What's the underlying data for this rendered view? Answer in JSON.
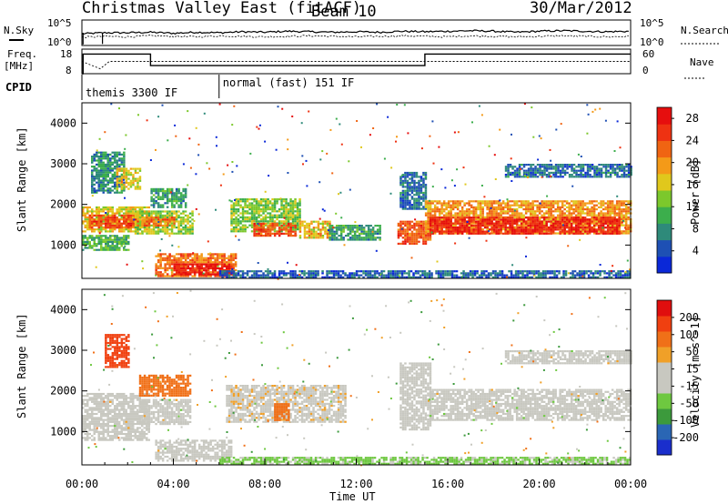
{
  "header": {
    "title": "Christmas Valley East (fitACF)",
    "beam": "Beam 10",
    "date": "30/Mar/2012"
  },
  "colors": {
    "power_scale": [
      "#0a28d8",
      "#1e50b4",
      "#2e8a7a",
      "#3cae4c",
      "#7cc82c",
      "#e0c81c",
      "#f49a18",
      "#f06412",
      "#ee3212",
      "#e60e0e"
    ],
    "velocity_scale": [
      "#1a2ecc",
      "#2a66b4",
      "#3c9a3c",
      "#6ec840",
      "#c8c8c0",
      "#c8c8c0",
      "#f0a028",
      "#f07018",
      "#f04010",
      "#e00e0e"
    ],
    "ground_scatter": "#c8c8c0"
  },
  "chart_data": [
    {
      "type": "line",
      "name": "sky-noise-panel",
      "left_label": "N.Sky",
      "right_label": "N.Search",
      "left_ticks": [
        "10^5",
        "10^0"
      ],
      "right_ticks": [
        "10^5",
        "10^0"
      ],
      "x": [
        0,
        1,
        2,
        3,
        4,
        5,
        6,
        7,
        8,
        9,
        10,
        11,
        12,
        13,
        14,
        15,
        16,
        17,
        18,
        19,
        20,
        21,
        22,
        23,
        24
      ],
      "series": [
        {
          "values": [
            2.3,
            2.5,
            2.5,
            2.6,
            2.4,
            2.6,
            2.5,
            2.7,
            2.6,
            2.8,
            2.7,
            2.6,
            2.7,
            2.6,
            2.8,
            2.7,
            2.8,
            2.9,
            2.8,
            2.6,
            2.8,
            2.9,
            2.8,
            2.7,
            2.8
          ]
        },
        {
          "values": [
            1.6,
            1.8,
            1.7,
            1.9,
            1.8,
            1.7,
            1.9,
            1.8,
            1.7,
            1.8,
            1.9,
            1.8,
            1.7,
            1.8,
            1.9,
            1.8,
            1.7,
            1.9,
            1.8,
            1.7,
            1.8,
            1.9,
            1.8,
            1.7,
            1.8
          ]
        }
      ],
      "ylim": [
        0,
        5
      ]
    },
    {
      "type": "line",
      "name": "frequency-panel",
      "left_label": "Freq.",
      "left_unit": "[MHz]",
      "right_label": "Nave",
      "left_ticks": [
        "18",
        "8"
      ],
      "right_ticks": [
        "60",
        "0"
      ],
      "cpid_label": "CPID",
      "modes": [
        {
          "start_hour": 0,
          "label": "themis 3300 IF"
        },
        {
          "start_hour": 6,
          "label": "normal (fast) 151 IF"
        }
      ],
      "frequency_x": [
        0,
        0.05,
        0.05,
        3.0,
        3.0,
        15.0,
        15.0,
        24
      ],
      "frequency_y": [
        8,
        8,
        16,
        16,
        11.3,
        11.3,
        16,
        16
      ],
      "nave_x": [
        0,
        0.8,
        1.2,
        3.0,
        15.0,
        24
      ],
      "nave_y": [
        30,
        12,
        30,
        30,
        30,
        30
      ],
      "ylim": [
        8,
        18
      ]
    },
    {
      "type": "heatmap",
      "name": "power-panel",
      "ylabel": "Slant Range [km]",
      "yticks": [
        1000,
        2000,
        3000,
        4000
      ],
      "ylim": [
        180,
        4500
      ],
      "xlim": [
        0,
        24
      ],
      "colorbar_label": "Power [dB]",
      "colorbar_ticks": [
        28,
        24,
        20,
        16,
        12,
        8,
        4
      ],
      "colorbar_range": [
        0,
        30
      ],
      "regions": [
        {
          "t0": 0.0,
          "t1": 2.9,
          "r0": 1350,
          "r1": 1950,
          "level": 17
        },
        {
          "t0": 0.3,
          "t1": 2.5,
          "r0": 1450,
          "r1": 1750,
          "level": 24
        },
        {
          "t0": 0.0,
          "t1": 2.0,
          "r0": 900,
          "r1": 1250,
          "level": 11
        },
        {
          "t0": 0.4,
          "t1": 1.8,
          "r0": 2300,
          "r1": 3300,
          "level": 8
        },
        {
          "t0": 1.5,
          "t1": 2.5,
          "r0": 2400,
          "r1": 2900,
          "level": 16
        },
        {
          "t0": 2.3,
          "t1": 4.8,
          "r0": 1300,
          "r1": 1850,
          "level": 14
        },
        {
          "t0": 2.6,
          "t1": 4.0,
          "r0": 1500,
          "r1": 1700,
          "level": 22
        },
        {
          "t0": 3.0,
          "t1": 4.5,
          "r0": 1950,
          "r1": 2400,
          "level": 9
        },
        {
          "t0": 3.2,
          "t1": 6.7,
          "r0": 250,
          "r1": 800,
          "level": 22
        },
        {
          "t0": 4.0,
          "t1": 6.5,
          "r0": 300,
          "r1": 550,
          "level": 28
        },
        {
          "t0": 6.5,
          "t1": 9.5,
          "r0": 1350,
          "r1": 2150,
          "level": 13
        },
        {
          "t0": 7.5,
          "t1": 9.3,
          "r0": 1250,
          "r1": 1550,
          "level": 24
        },
        {
          "t0": 9.5,
          "t1": 10.8,
          "r0": 1200,
          "r1": 1600,
          "level": 18
        },
        {
          "t0": 10.8,
          "t1": 13.0,
          "r0": 1150,
          "r1": 1500,
          "level": 9
        },
        {
          "t0": 13.8,
          "t1": 15.2,
          "r0": 1050,
          "r1": 1600,
          "level": 24
        },
        {
          "t0": 13.9,
          "t1": 15.0,
          "r0": 1900,
          "r1": 2800,
          "level": 6
        },
        {
          "t0": 15.0,
          "t1": 24.0,
          "r0": 1300,
          "r1": 2100,
          "level": 20
        },
        {
          "t0": 15.2,
          "t1": 23.5,
          "r0": 1300,
          "r1": 1700,
          "level": 27
        },
        {
          "t0": 18.5,
          "t1": 24.0,
          "r0": 2700,
          "r1": 3000,
          "level": 6
        },
        {
          "t0": 6.0,
          "t1": 24.0,
          "r0": 200,
          "r1": 380,
          "level": 5
        }
      ]
    },
    {
      "type": "heatmap",
      "name": "velocity-panel",
      "ylabel": "Slant Range [km]",
      "xlabel": "Time UT",
      "yticks": [
        1000,
        2000,
        3000,
        4000
      ],
      "ylim": [
        180,
        4500
      ],
      "xlim": [
        0,
        24
      ],
      "xticks": [
        "00:00",
        "04:00",
        "08:00",
        "12:00",
        "16:00",
        "20:00",
        "00:00"
      ],
      "colorbar_label": "Velocity [m s^-1]",
      "colorbar_ticks": [
        200,
        100,
        50,
        15,
        -15,
        -50,
        -100,
        -200
      ],
      "colorbar_range": [
        -250,
        250
      ],
      "regions": [
        {
          "t0": 0.0,
          "t1": 2.9,
          "r0": 800,
          "r1": 1950,
          "level": 0
        },
        {
          "t0": 1.0,
          "t1": 2.0,
          "r0": 2600,
          "r1": 3400,
          "level": 180
        },
        {
          "t0": 2.5,
          "t1": 4.7,
          "r0": 1900,
          "r1": 2400,
          "level": 120
        },
        {
          "t0": 2.5,
          "t1": 4.7,
          "r0": 1200,
          "r1": 1800,
          "level": 0
        },
        {
          "t0": 3.2,
          "t1": 6.5,
          "r0": 300,
          "r1": 800,
          "level": 0
        },
        {
          "t0": 6.3,
          "t1": 11.5,
          "r0": 1250,
          "r1": 2150,
          "level": 35
        },
        {
          "t0": 8.4,
          "t1": 9.0,
          "r0": 1300,
          "r1": 1700,
          "level": 120
        },
        {
          "t0": 13.9,
          "t1": 15.2,
          "r0": 1050,
          "r1": 2700,
          "level": 30
        },
        {
          "t0": 15.2,
          "t1": 24.0,
          "r0": 1300,
          "r1": 2050,
          "level": 0
        },
        {
          "t0": 18.5,
          "t1": 24.0,
          "r0": 2700,
          "r1": 3000,
          "level": 0
        },
        {
          "t0": 6.0,
          "t1": 24.0,
          "r0": 200,
          "r1": 380,
          "level": -60
        }
      ]
    }
  ]
}
